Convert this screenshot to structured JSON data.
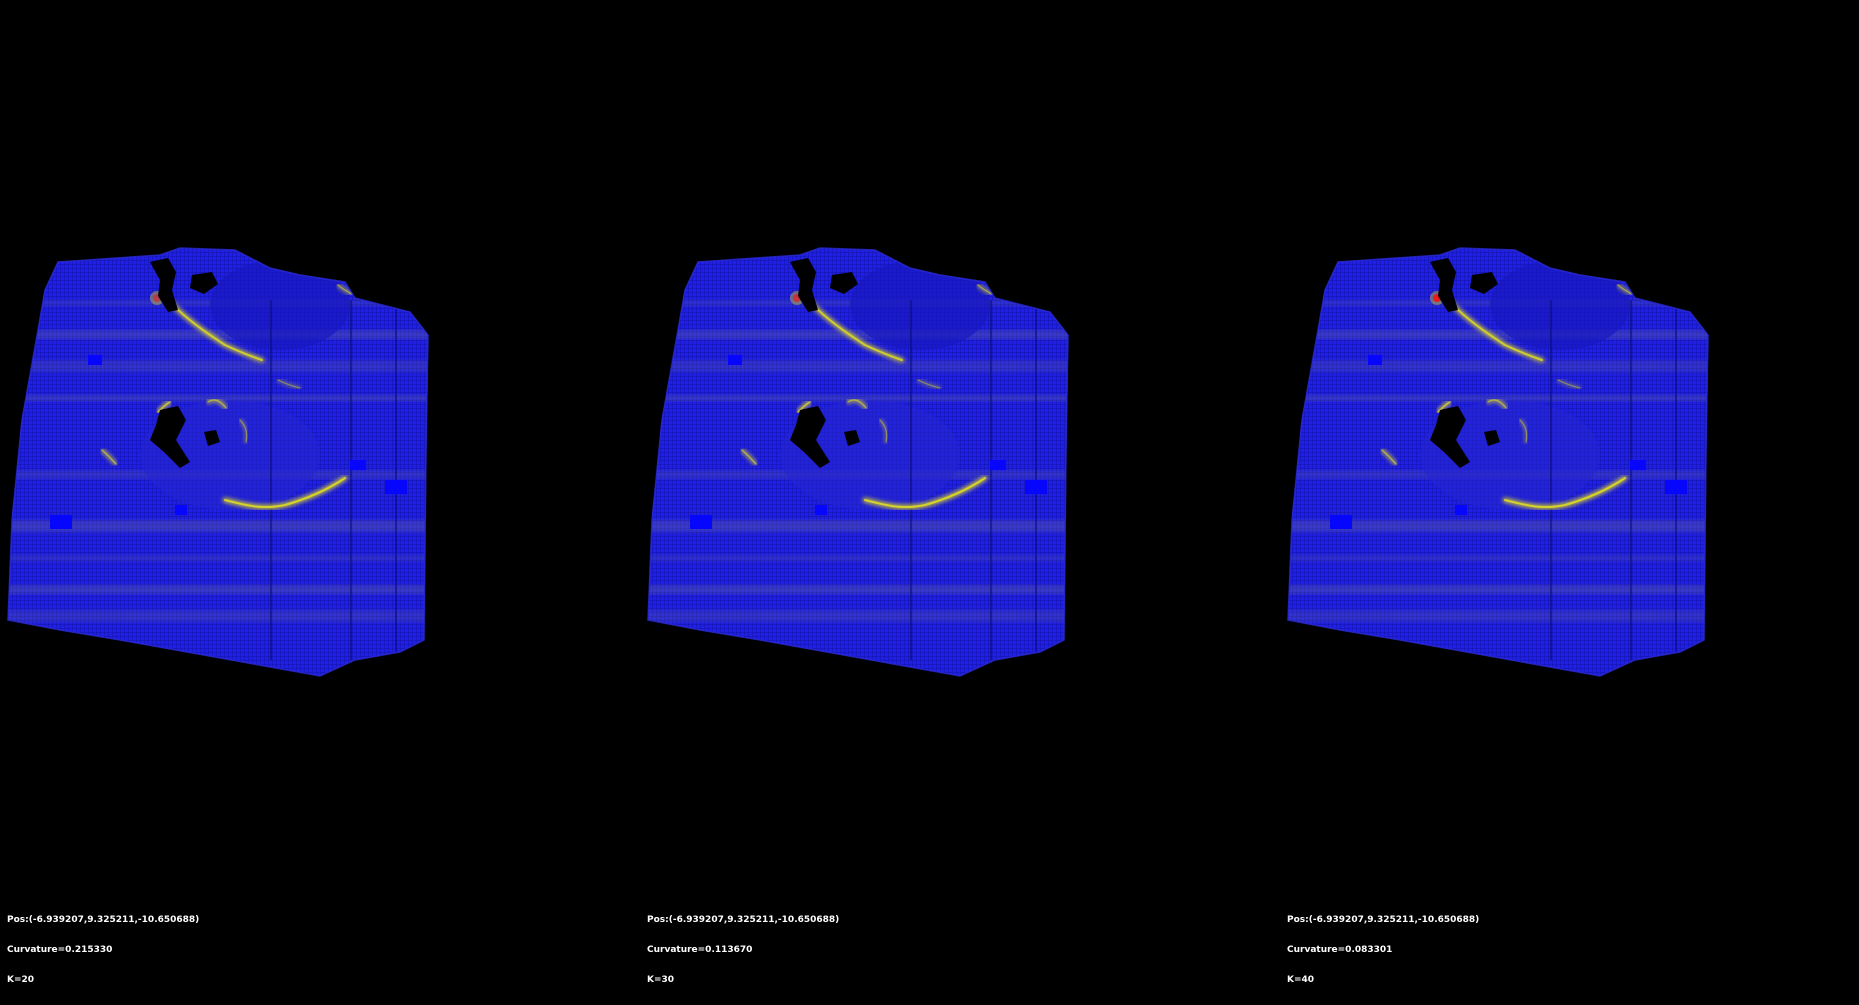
{
  "viewports": [
    {
      "pos": "Pos:(-6.939207,9.325211,-10.650688)",
      "curvature": "Curvature=0.215330",
      "k": "K=20",
      "red_intensity": 0.55
    },
    {
      "pos": "Pos:(-6.939207,9.325211,-10.650688)",
      "curvature": "Curvature=0.113670",
      "k": "K=30",
      "red_intensity": 0.7
    },
    {
      "pos": "Pos:(-6.939207,9.325211,-10.650688)",
      "curvature": "Curvature=0.083301",
      "k": "K=40",
      "red_intensity": 1.0
    }
  ],
  "colors": {
    "background": "#000000",
    "surface_low": "#1f1fe8",
    "surface_mid": "#6a6aa0",
    "surface_high": "#e6e21c",
    "surface_peak": "#e81c1c",
    "hole": "#000000",
    "overlay_text": "#ffffff"
  }
}
